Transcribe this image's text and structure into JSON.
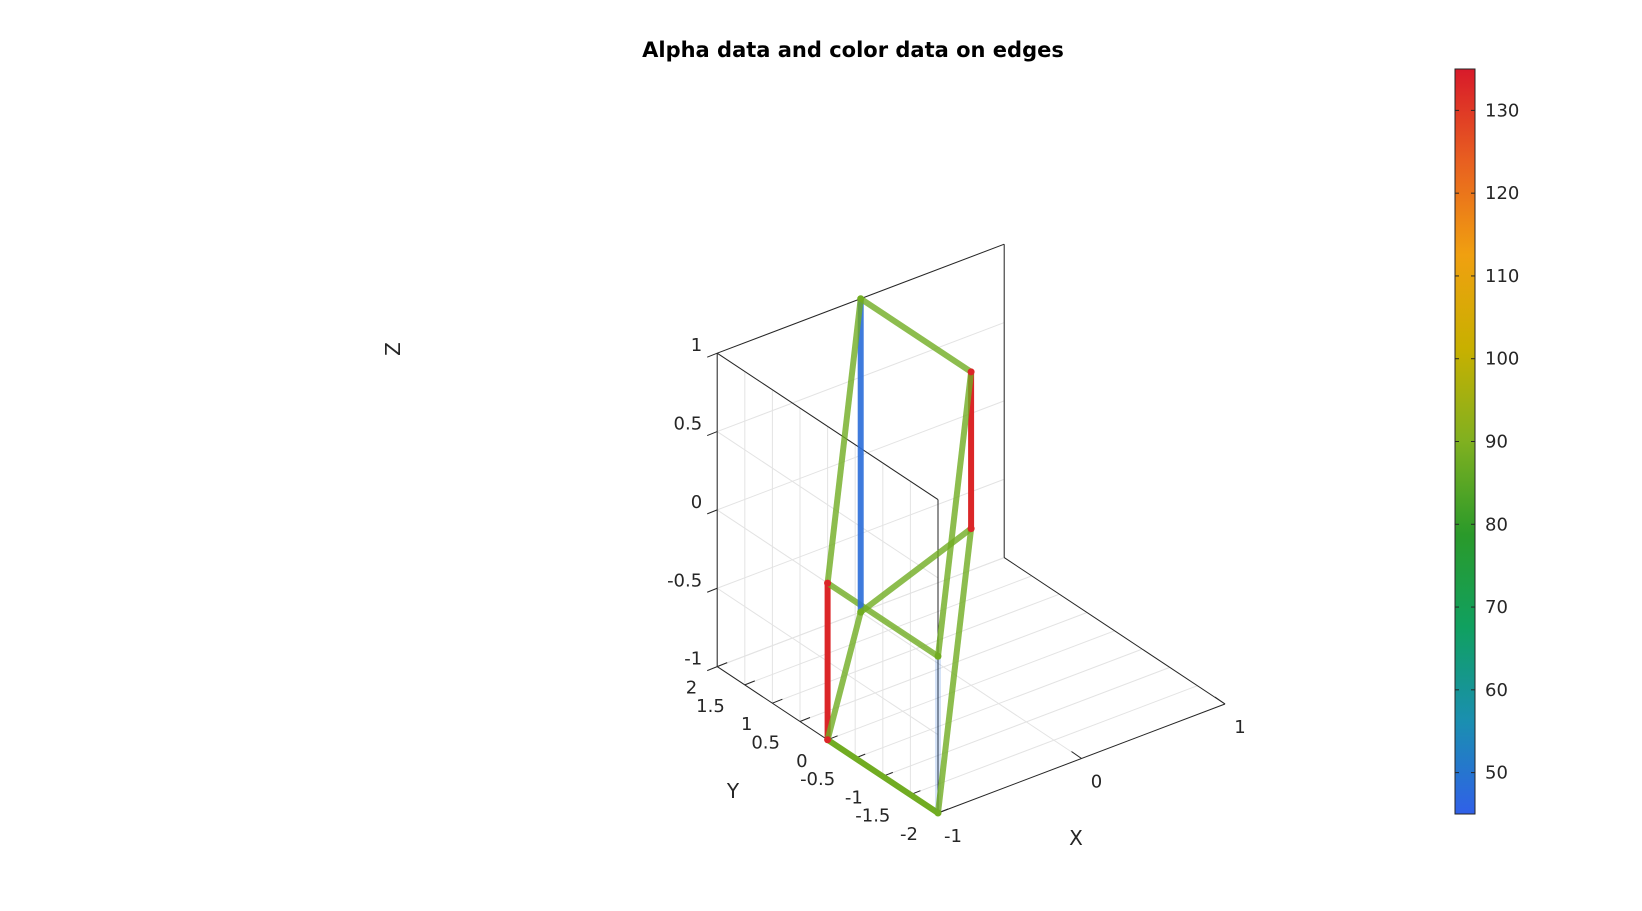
{
  "chart_data": {
    "type": "3d-line",
    "title": "Alpha data and color data on edges",
    "xlabel": "X",
    "ylabel": "Y",
    "zlabel": "Z",
    "xlim": [
      -1,
      1
    ],
    "ylim": [
      -2,
      2
    ],
    "zlim": [
      -1,
      1
    ],
    "xticks": [
      -1,
      0,
      1
    ],
    "xtick_labels": [
      "-1",
      "0",
      "1"
    ],
    "yticks": [
      -2,
      -1.5,
      -1,
      -0.5,
      0,
      0.5,
      1,
      1.5,
      2
    ],
    "ytick_labels": [
      "-2",
      "-1.5",
      "-1",
      "-0.5",
      "0",
      "0.5",
      "1",
      "1.5",
      "2"
    ],
    "zticks": [
      -1,
      -0.5,
      0,
      0.5,
      1
    ],
    "ztick_labels": [
      "-1",
      "-0.5",
      "0",
      "0.5",
      "1"
    ],
    "grid": true,
    "box": "half",
    "view": "3d",
    "colorbar": {
      "location": "right",
      "limits": [
        45,
        135
      ],
      "ticks": [
        50,
        60,
        70,
        80,
        90,
        100,
        110,
        120,
        130
      ],
      "tick_labels": [
        "50",
        "60",
        "70",
        "80",
        "90",
        "100",
        "110",
        "120",
        "130"
      ],
      "colormap": [
        "#3060e8",
        "#1a8fb0",
        "#10a060",
        "#2a9a2a",
        "#80b020",
        "#c8b000",
        "#f0a010",
        "#e86020",
        "#d81a2a"
      ]
    },
    "vertices": [
      {
        "id": 1,
        "x": -1,
        "y": -2,
        "z": -1
      },
      {
        "id": 2,
        "x": -1,
        "y": 0,
        "z": -1
      },
      {
        "id": 3,
        "x": -1,
        "y": 0,
        "z": 0
      },
      {
        "id": 4,
        "x": -1,
        "y": -2,
        "z": 0
      },
      {
        "id": 5,
        "x": 0,
        "y": 2,
        "z": -1
      },
      {
        "id": 6,
        "x": 0,
        "y": 2,
        "z": 1
      },
      {
        "id": 7,
        "x": 0,
        "y": 0,
        "z": 1
      },
      {
        "id": 8,
        "x": 0,
        "y": 0,
        "z": 0
      }
    ],
    "edges": [
      {
        "from": 1,
        "to": 2,
        "color_value": 88,
        "alpha": 1.0
      },
      {
        "from": 2,
        "to": 3,
        "color_value": 133,
        "alpha": 1.0
      },
      {
        "from": 3,
        "to": 4,
        "color_value": 88,
        "alpha": 0.8
      },
      {
        "from": 4,
        "to": 1,
        "color_value": 48,
        "alpha": 0.2
      },
      {
        "from": 5,
        "to": 6,
        "color_value": 48,
        "alpha": 0.9
      },
      {
        "from": 6,
        "to": 7,
        "color_value": 88,
        "alpha": 0.8
      },
      {
        "from": 7,
        "to": 8,
        "color_value": 133,
        "alpha": 1.0
      },
      {
        "from": 8,
        "to": 5,
        "color_value": 88,
        "alpha": 0.8
      },
      {
        "from": 2,
        "to": 5,
        "color_value": 88,
        "alpha": 0.8
      },
      {
        "from": 3,
        "to": 6,
        "color_value": 88,
        "alpha": 0.8
      },
      {
        "from": 4,
        "to": 7,
        "color_value": 88,
        "alpha": 0.8
      },
      {
        "from": 1,
        "to": 8,
        "color_value": 88,
        "alpha": 0.8
      }
    ],
    "vertex_colors": [
      {
        "id": 1,
        "color_value": 88
      },
      {
        "id": 2,
        "color_value": 133
      },
      {
        "id": 3,
        "color_value": 133
      },
      {
        "id": 4,
        "color_value": 88
      },
      {
        "id": 5,
        "color_value": 88
      },
      {
        "id": 6,
        "color_value": 88
      },
      {
        "id": 7,
        "color_value": 133
      },
      {
        "id": 8,
        "color_value": 133
      }
    ]
  }
}
